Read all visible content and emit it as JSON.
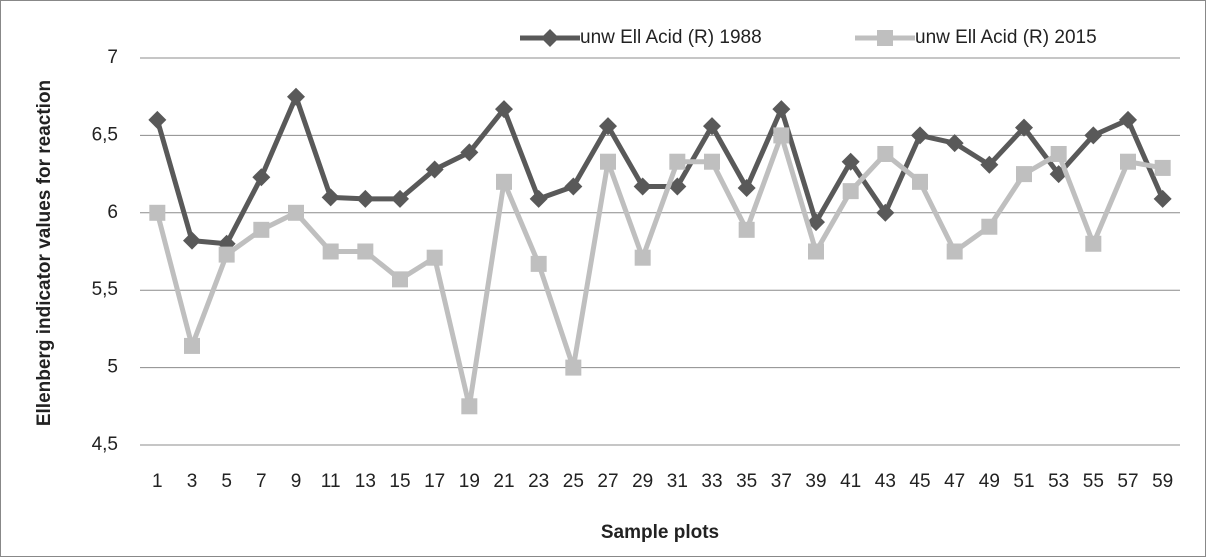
{
  "chart_data": {
    "type": "line",
    "x_label": "Sample plots",
    "y_label": "Ellenberg indicator values for reaction",
    "categories": [
      1,
      3,
      5,
      7,
      9,
      11,
      13,
      15,
      17,
      19,
      21,
      23,
      25,
      27,
      29,
      31,
      33,
      35,
      37,
      39,
      41,
      43,
      45,
      47,
      49,
      51,
      53,
      55,
      57,
      59
    ],
    "series": [
      {
        "name": "unw Ell Acid (R) 1988",
        "color": "#595959",
        "marker": "diamond",
        "values": [
          6.6,
          5.82,
          5.8,
          6.23,
          6.75,
          6.1,
          6.09,
          6.09,
          6.28,
          6.39,
          6.67,
          6.09,
          6.17,
          6.56,
          6.17,
          6.17,
          6.56,
          6.16,
          6.67,
          5.94,
          6.33,
          6.0,
          6.5,
          6.45,
          6.31,
          6.55,
          6.25,
          6.5,
          6.6,
          6.09
        ]
      },
      {
        "name": "unw Ell Acid (R) 2015",
        "color": "#bfbfbf",
        "marker": "square",
        "values": [
          6.0,
          5.14,
          5.73,
          5.89,
          6.0,
          5.75,
          5.75,
          5.57,
          5.71,
          4.75,
          6.2,
          5.67,
          5.0,
          6.33,
          5.71,
          6.33,
          6.33,
          5.89,
          6.5,
          5.75,
          6.14,
          6.38,
          6.2,
          5.75,
          5.91,
          6.25,
          6.38,
          5.8,
          6.33,
          6.29
        ]
      }
    ],
    "ylim": [
      4.5,
      7
    ],
    "yticks": [
      {
        "value": 4.5,
        "label": "4,5"
      },
      5,
      {
        "value": 5.5,
        "label": "5,5"
      },
      6,
      {
        "value": 6.5,
        "label": "6,5"
      },
      7
    ],
    "grid": true,
    "legend": "top"
  }
}
